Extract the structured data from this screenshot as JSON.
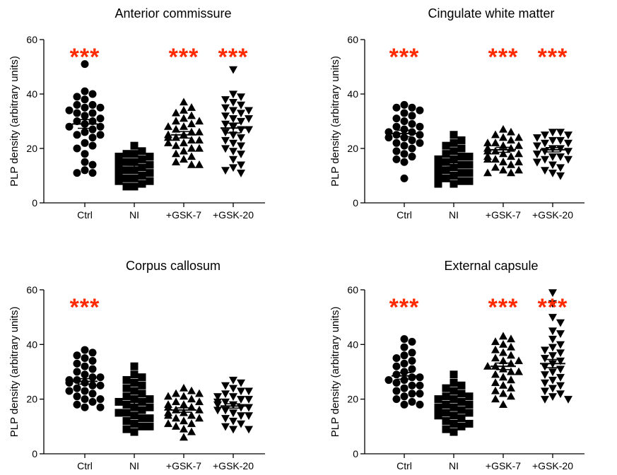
{
  "colors": {
    "points": "#000000",
    "significance": "#ff2a00",
    "axis": "#000000"
  },
  "chart_data": [
    {
      "type": "scatter",
      "title": "Anterior commissure",
      "ylabel": "PLP density (arbitrary units)",
      "xlabel": "",
      "ylim": [
        0,
        60
      ],
      "yticks": [
        0,
        20,
        40,
        60
      ],
      "grid": false,
      "categories": [
        "Ctrl",
        "NI",
        "+GSK-7",
        "+GSK-20"
      ],
      "markers": [
        "circle",
        "square",
        "triangle-up",
        "triangle-down"
      ],
      "significance": [
        "***",
        "",
        "***",
        "***"
      ],
      "means": [
        29.0,
        13.0,
        25.0,
        27.5
      ],
      "sem": [
        1.6,
        0.8,
        1.2,
        1.8
      ],
      "series": [
        {
          "values": [
            51,
            41,
            40,
            39,
            38,
            36,
            36,
            35,
            35,
            34,
            33,
            33,
            32,
            31,
            30,
            30,
            29,
            28,
            28,
            27,
            26,
            25,
            25,
            24,
            22,
            21,
            20,
            18,
            15,
            14,
            12,
            11,
            11
          ]
        },
        {
          "values": [
            21,
            19,
            18,
            18,
            17,
            17,
            16,
            16,
            15,
            15,
            14,
            14,
            14,
            13,
            13,
            13,
            12,
            12,
            12,
            11,
            11,
            11,
            10,
            10,
            9,
            9,
            8,
            8,
            7,
            6,
            6
          ]
        },
        {
          "values": [
            37,
            35,
            34,
            33,
            32,
            31,
            30,
            30,
            29,
            28,
            28,
            27,
            26,
            26,
            25,
            25,
            24,
            24,
            23,
            23,
            22,
            22,
            21,
            20,
            20,
            19,
            18,
            17,
            16,
            15,
            14,
            14
          ]
        },
        {
          "values": [
            49,
            40,
            39,
            38,
            37,
            36,
            35,
            34,
            34,
            33,
            32,
            31,
            31,
            30,
            29,
            28,
            27,
            27,
            26,
            25,
            24,
            23,
            22,
            21,
            20,
            19,
            18,
            16,
            14,
            13,
            12,
            11
          ]
        }
      ]
    },
    {
      "type": "scatter",
      "title": "Cingulate white matter",
      "ylabel": "PLP density (arbitrary units)",
      "xlabel": "",
      "ylim": [
        0,
        60
      ],
      "yticks": [
        0,
        20,
        40,
        60
      ],
      "grid": false,
      "categories": [
        "Ctrl",
        "NI",
        "+GSK-7",
        "+GSK-20"
      ],
      "markers": [
        "circle",
        "square",
        "triangle-up",
        "triangle-down"
      ],
      "significance": [
        "***",
        "",
        "***",
        "***"
      ],
      "means": [
        25.5,
        14.0,
        19.5,
        19.5
      ],
      "sem": [
        1.2,
        0.8,
        0.9,
        0.8
      ],
      "series": [
        {
          "values": [
            36,
            35,
            35,
            34,
            33,
            32,
            31,
            30,
            29,
            28,
            28,
            27,
            26,
            26,
            25,
            25,
            24,
            24,
            23,
            22,
            22,
            21,
            20,
            19,
            18,
            17,
            16,
            15,
            9
          ]
        },
        {
          "values": [
            25,
            23,
            22,
            21,
            20,
            19,
            18,
            17,
            17,
            16,
            16,
            15,
            15,
            14,
            14,
            13,
            13,
            12,
            12,
            11,
            11,
            10,
            10,
            9,
            9,
            8,
            8,
            7,
            7
          ]
        },
        {
          "values": [
            27,
            26,
            25,
            24,
            24,
            23,
            22,
            22,
            21,
            21,
            20,
            20,
            19,
            19,
            18,
            18,
            17,
            17,
            16,
            16,
            15,
            15,
            14,
            13,
            12,
            12,
            11,
            11
          ]
        },
        {
          "values": [
            26,
            26,
            25,
            25,
            24,
            23,
            23,
            22,
            22,
            21,
            20,
            20,
            19,
            19,
            18,
            18,
            17,
            17,
            16,
            16,
            15,
            15,
            14,
            13,
            12,
            11,
            10
          ]
        }
      ]
    },
    {
      "type": "scatter",
      "title": "Corpus callosum",
      "ylabel": "PLP density (arbitrary units)",
      "xlabel": "",
      "ylim": [
        0,
        60
      ],
      "yticks": [
        0,
        20,
        40,
        60
      ],
      "grid": false,
      "categories": [
        "Ctrl",
        "NI",
        "+GSK-7",
        "+GSK-20"
      ],
      "markers": [
        "circle",
        "square",
        "triangle-up",
        "triangle-down"
      ],
      "significance": [
        "***",
        "",
        "",
        ""
      ],
      "means": [
        26.5,
        18.0,
        16.0,
        17.5
      ],
      "sem": [
        1.0,
        1.0,
        0.8,
        0.8
      ],
      "series": [
        {
          "values": [
            38,
            37,
            36,
            35,
            34,
            33,
            32,
            31,
            30,
            29,
            28,
            28,
            27,
            27,
            26,
            26,
            25,
            25,
            24,
            23,
            23,
            22,
            21,
            20,
            20,
            19,
            18,
            17,
            17
          ]
        },
        {
          "values": [
            32,
            29,
            28,
            27,
            26,
            25,
            24,
            23,
            22,
            21,
            20,
            20,
            19,
            19,
            18,
            17,
            17,
            16,
            15,
            15,
            14,
            13,
            13,
            12,
            11,
            10,
            10,
            9,
            8
          ]
        },
        {
          "values": [
            24,
            23,
            22,
            22,
            21,
            21,
            20,
            19,
            19,
            18,
            18,
            17,
            17,
            16,
            16,
            15,
            15,
            14,
            14,
            13,
            13,
            12,
            11,
            11,
            10,
            9,
            8,
            6
          ]
        },
        {
          "values": [
            27,
            26,
            25,
            24,
            23,
            23,
            22,
            21,
            21,
            20,
            20,
            19,
            19,
            18,
            18,
            17,
            17,
            16,
            16,
            15,
            14,
            14,
            13,
            12,
            11,
            10,
            9,
            9
          ]
        }
      ]
    },
    {
      "type": "scatter",
      "title": "External capsule",
      "ylabel": "PLP density (arbitrary units)",
      "xlabel": "",
      "ylim": [
        0,
        60
      ],
      "yticks": [
        0,
        20,
        40,
        60
      ],
      "grid": false,
      "categories": [
        "Ctrl",
        "NI",
        "+GSK-7",
        "+GSK-20"
      ],
      "markers": [
        "circle",
        "square",
        "triangle-up",
        "triangle-down"
      ],
      "significance": [
        "***",
        "",
        "***",
        "***"
      ],
      "means": [
        28.5,
        17.0,
        32.0,
        33.0
      ],
      "sem": [
        1.2,
        1.0,
        1.2,
        1.5
      ],
      "series": [
        {
          "values": [
            42,
            41,
            39,
            37,
            36,
            35,
            34,
            33,
            32,
            31,
            30,
            29,
            28,
            28,
            27,
            27,
            26,
            25,
            25,
            24,
            23,
            22,
            22,
            21,
            20,
            19,
            18,
            18
          ]
        },
        {
          "values": [
            29,
            26,
            25,
            24,
            23,
            22,
            21,
            21,
            20,
            20,
            19,
            18,
            18,
            17,
            17,
            16,
            16,
            15,
            15,
            14,
            14,
            13,
            12,
            11,
            11,
            10,
            9,
            8
          ]
        },
        {
          "values": [
            43,
            42,
            41,
            40,
            39,
            38,
            37,
            36,
            35,
            34,
            34,
            33,
            32,
            32,
            31,
            30,
            30,
            29,
            28,
            27,
            26,
            25,
            24,
            23,
            22,
            21,
            20,
            18
          ]
        },
        {
          "values": [
            59,
            55,
            50,
            48,
            45,
            44,
            42,
            40,
            39,
            38,
            37,
            36,
            35,
            34,
            33,
            32,
            31,
            30,
            29,
            28,
            27,
            26,
            25,
            24,
            23,
            22,
            21,
            20,
            20
          ]
        }
      ]
    }
  ]
}
